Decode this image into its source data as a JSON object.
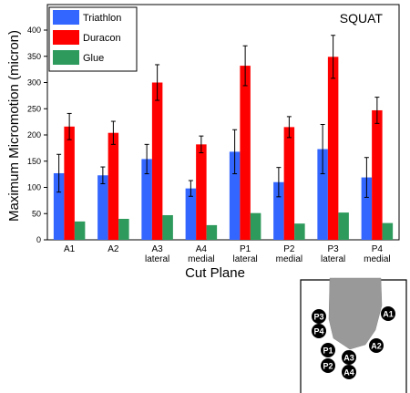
{
  "chart_data": {
    "type": "bar",
    "title": "SQUAT",
    "xlabel": "Cut Plane",
    "ylabel": "Maximum Micromotion (micron)",
    "ylim": [
      0,
      400
    ],
    "yticks": [
      0,
      50,
      100,
      150,
      200,
      250,
      300,
      350,
      400
    ],
    "categories": [
      [
        "A1"
      ],
      [
        "A2"
      ],
      [
        "A3",
        "lateral"
      ],
      [
        "A4",
        "medial"
      ],
      [
        "P1",
        "lateral"
      ],
      [
        "P2",
        "medial"
      ],
      [
        "P3",
        "lateral"
      ],
      [
        "P4",
        "medial"
      ]
    ],
    "series": [
      {
        "name": "Triathlon",
        "color": "#3366ff",
        "values": [
          127,
          123,
          154,
          98,
          168,
          110,
          173,
          119
        ],
        "error": [
          36,
          16,
          28,
          15,
          42,
          28,
          47,
          38
        ]
      },
      {
        "name": "Duracon",
        "color": "#ff0000",
        "values": [
          216,
          204,
          300,
          182,
          332,
          215,
          349,
          247
        ],
        "error": [
          25,
          22,
          34,
          16,
          38,
          20,
          41,
          25
        ]
      },
      {
        "name": "Glue",
        "color": "#2e9a5c",
        "values": [
          35,
          40,
          47,
          28,
          51,
          31,
          52,
          32
        ],
        "error": [
          0,
          0,
          0,
          0,
          0,
          0,
          0,
          0
        ]
      }
    ],
    "legend_position": "top-left",
    "grid": false
  },
  "inset": {
    "markers": [
      "P3",
      "P4",
      "P1",
      "P2",
      "A3",
      "A4",
      "A1",
      "A2"
    ]
  }
}
